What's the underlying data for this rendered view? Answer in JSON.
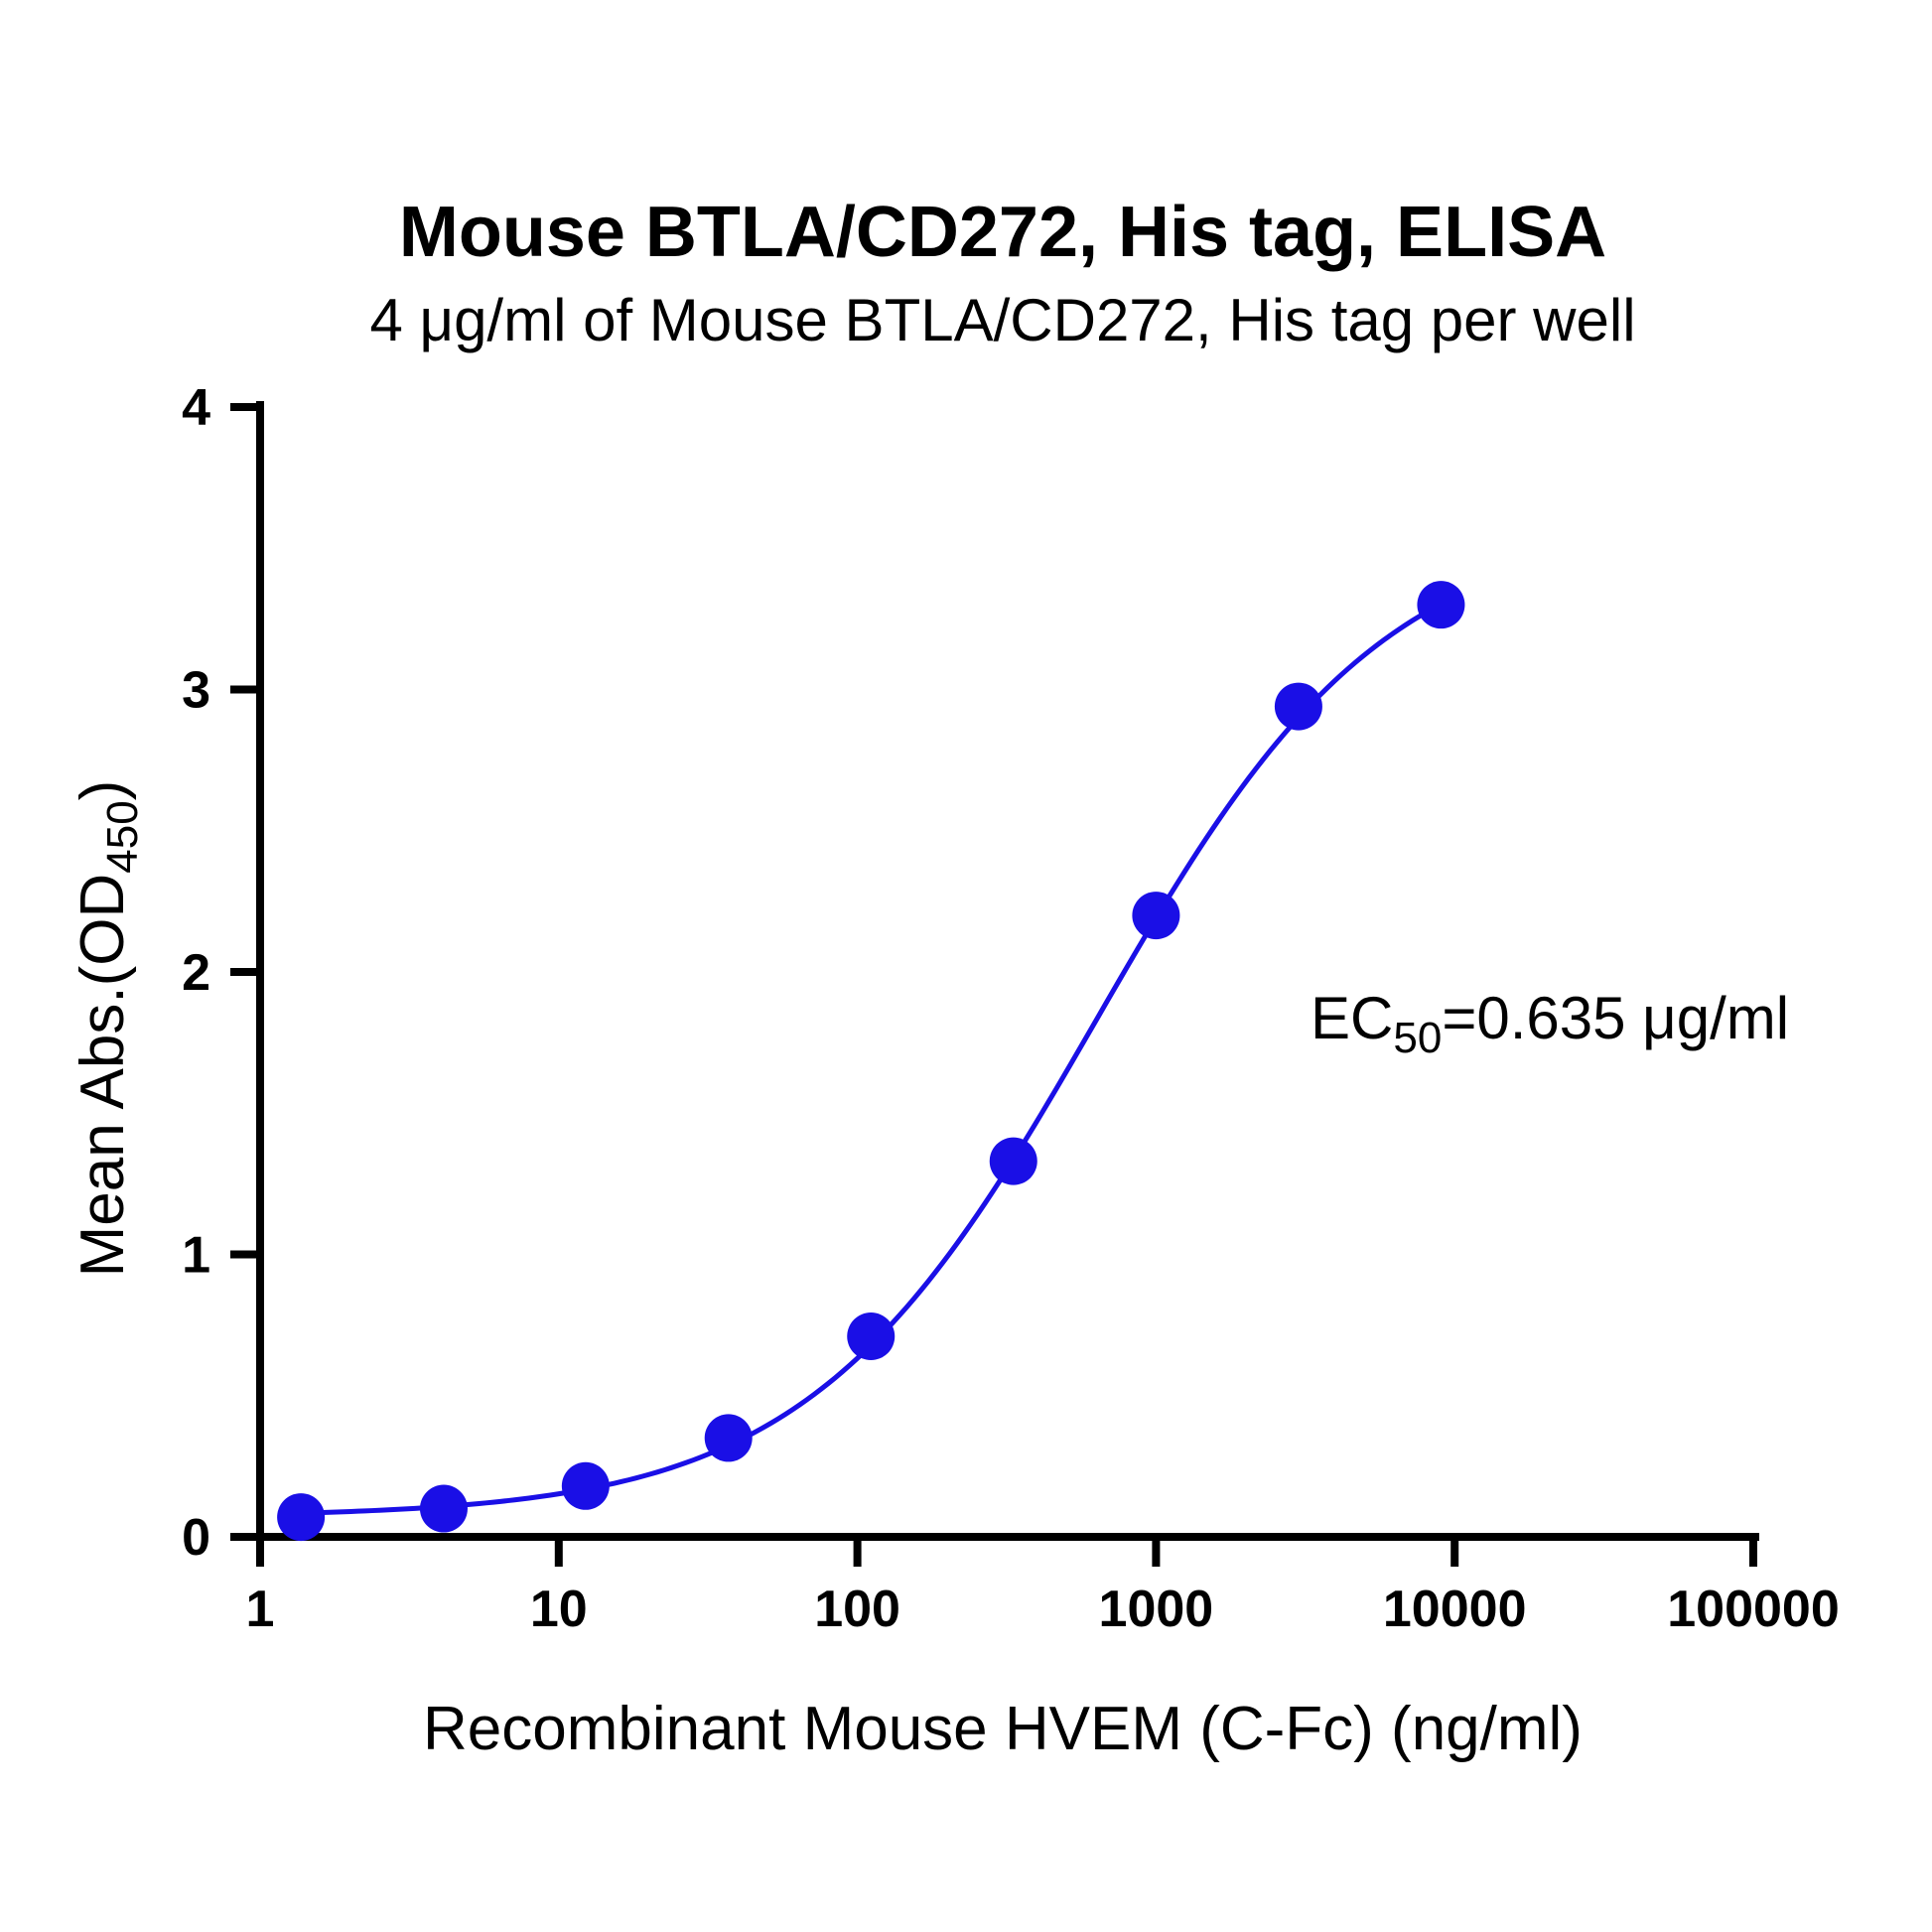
{
  "chart_data": {
    "type": "scatter",
    "title": "Mouse BTLA/CD272, His tag, ELISA",
    "subtitle": "4 μg/ml of Mouse BTLA/CD272, His tag per well",
    "xlabel": "Recombinant Mouse HVEM (C-Fc) (ng/ml)",
    "ylabel": {
      "main": "Mean Abs.(OD",
      "sub": "450",
      "end": ")"
    },
    "xscale": "log",
    "xlim": [
      1,
      100000
    ],
    "ylim": [
      0,
      4
    ],
    "xticks": [
      1,
      10,
      100,
      1000,
      10000,
      100000
    ],
    "xtick_labels": [
      "1",
      "10",
      "100",
      "1000",
      "10000",
      "100000"
    ],
    "yticks": [
      0,
      1,
      2,
      3,
      4
    ],
    "ytick_labels": [
      "0",
      "1",
      "2",
      "3",
      "4"
    ],
    "series": [
      {
        "name": "Mouse BTLA/CD272, His tag",
        "color": "#1a0fe6",
        "x": [
          1.37,
          4.12,
          12.3,
          37.0,
          111,
          333,
          1000,
          3000,
          9000
        ],
        "y": [
          0.07,
          0.1,
          0.18,
          0.35,
          0.71,
          1.33,
          2.2,
          2.94,
          3.3
        ]
      }
    ],
    "fit": {
      "model": "4PL",
      "bottom": 0.07,
      "top": 3.6,
      "ec50_ng_ml": 635,
      "hill": 0.9
    },
    "annotation": {
      "main": "EC",
      "sub": "50",
      "end": "=0.635 μg/ml"
    }
  }
}
